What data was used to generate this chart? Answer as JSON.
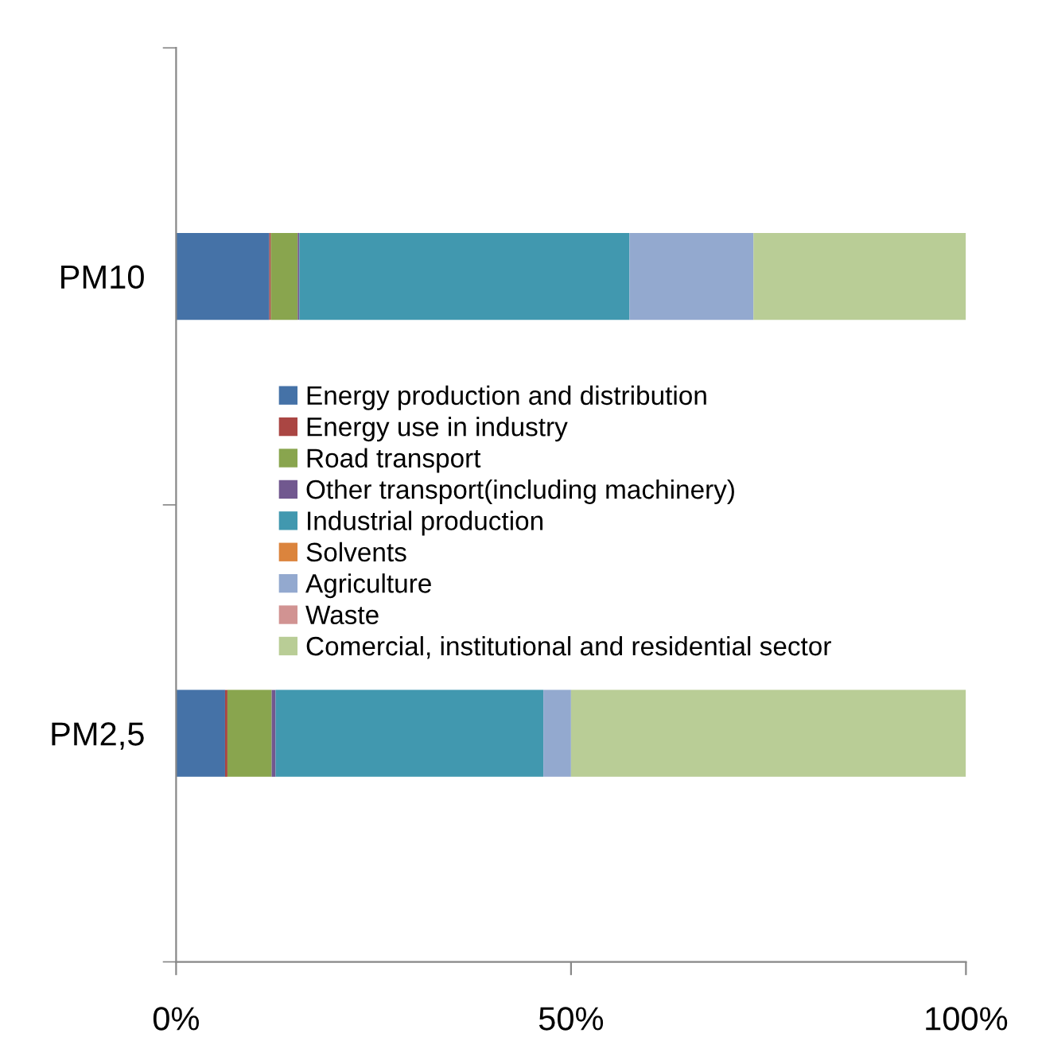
{
  "chart_data": {
    "type": "bar",
    "orientation": "horizontal",
    "stacked": true,
    "categories": [
      "PM10",
      "PM2,5"
    ],
    "series": [
      {
        "name": "Energy production and distribution",
        "color": "#4572a7",
        "values": [
          11.8,
          6.2
        ]
      },
      {
        "name": "Energy use in industry",
        "color": "#aa4643",
        "values": [
          0.2,
          0.3
        ]
      },
      {
        "name": "Road transport",
        "color": "#89a54e",
        "values": [
          3.4,
          5.6
        ]
      },
      {
        "name": "Other transport(including machinery)",
        "color": "#71588f",
        "values": [
          0.2,
          0.5
        ]
      },
      {
        "name": "Industrial production",
        "color": "#4198af",
        "values": [
          41.8,
          33.9
        ]
      },
      {
        "name": "Solvents",
        "color": "#db843d",
        "values": [
          0,
          0
        ]
      },
      {
        "name": "Agriculture",
        "color": "#93a9cf",
        "values": [
          15.7,
          3.5
        ]
      },
      {
        "name": "Waste",
        "color": "#d19392",
        "values": [
          0,
          0
        ]
      },
      {
        "name": "Comercial, institutional and residential sector",
        "color": "#b9cd96",
        "values": [
          26.9,
          50.0
        ]
      }
    ],
    "xlim": [
      0,
      100
    ],
    "xticks": [
      {
        "value": 0,
        "label": "0%"
      },
      {
        "value": 50,
        "label": "50%"
      },
      {
        "value": 100,
        "label": "100%"
      }
    ],
    "grid": false,
    "legend": "center"
  }
}
